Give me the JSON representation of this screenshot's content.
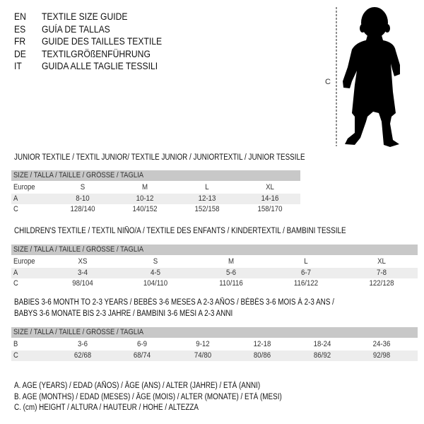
{
  "header": {
    "languages": [
      {
        "code": "EN",
        "text": "TEXTILE SIZE GUIDE"
      },
      {
        "code": "ES",
        "text": "GUÍA DE TALLAS"
      },
      {
        "code": "FR",
        "text": "GUIDE DES TAILLES TEXTILE"
      },
      {
        "code": "DE",
        "text": "TEXTILGRÖßENFÜHRUNG"
      },
      {
        "code": "IT",
        "text": "GUIDA ALLE TAGLIE TESSILI"
      }
    ],
    "figure_label": "C",
    "figure_icon": "child-silhouette-icon"
  },
  "junior": {
    "title": "JUNIOR TEXTILE / TEXTIL JUNIOR/ TEXTILE JUNIOR / JUNIORTEXTIL / JUNIOR TESSILE",
    "header": "SIZE / TALLA / TAILLE / GRÖSSE / TAGLIA",
    "rows": [
      {
        "label": "Europe",
        "values": [
          "S",
          "M",
          "L",
          "XL"
        ]
      },
      {
        "label": "A",
        "values": [
          "8-10",
          "10-12",
          "12-13",
          "14-16"
        ]
      },
      {
        "label": "C",
        "values": [
          "128/140",
          "140/152",
          "152/158",
          "158/170"
        ]
      }
    ]
  },
  "children": {
    "title": "CHILDREN'S TEXTILE / TEXTIL NIÑO/A / TEXTILE DES ENFANTS / KINDERTEXTIL / BAMBINI TESSILE",
    "header": "SIZE / TALLA / TAILLE / GRÖSSE / TAGLIA",
    "rows": [
      {
        "label": "Europe",
        "values": [
          "XS",
          "S",
          "M",
          "L",
          "XL"
        ]
      },
      {
        "label": "A",
        "values": [
          "3-4",
          "4-5",
          "5-6",
          "6-7",
          "7-8"
        ]
      },
      {
        "label": "C",
        "values": [
          "98/104",
          "104/110",
          "110/116",
          "116/122",
          "122/128"
        ]
      }
    ]
  },
  "babies": {
    "title_line1": "BABIES 3-6 MONTH TO 2-3 YEARS / BEBÉS 3-6 MESES A 2-3 AÑOS / BÉBÉS 3-6 MOIS À 2-3 ANS /",
    "title_line2": "BABYS 3-6 MONATE BIS 2-3 JAHRE / BAMBINI 3-6 MESI A 2-3 ANNI",
    "header": "SIZE / TALLA / TAILLE / GRÖSSE / TAGLIA",
    "rows": [
      {
        "label": "B",
        "values": [
          "3-6",
          "6-9",
          "9-12",
          "12-18",
          "18-24",
          "24-36"
        ]
      },
      {
        "label": "C",
        "values": [
          "62/68",
          "68/74",
          "74/80",
          "80/86",
          "86/92",
          "92/98"
        ]
      }
    ]
  },
  "legend": [
    "A. AGE (YEARS) / EDAD (AÑOS) / ÂGE (ANS) / ALTER (JAHRE) / ETÀ (ANNI)",
    "B. AGE (MONTHS) / EDAD (MESES) / ÂGE (MOIS) / ALTER (MONATE) / ETÀ (MESI)",
    "C. (cm) HEIGHT / ALTURA / HAUTEUR / HÖHE / ALTEZZA"
  ]
}
